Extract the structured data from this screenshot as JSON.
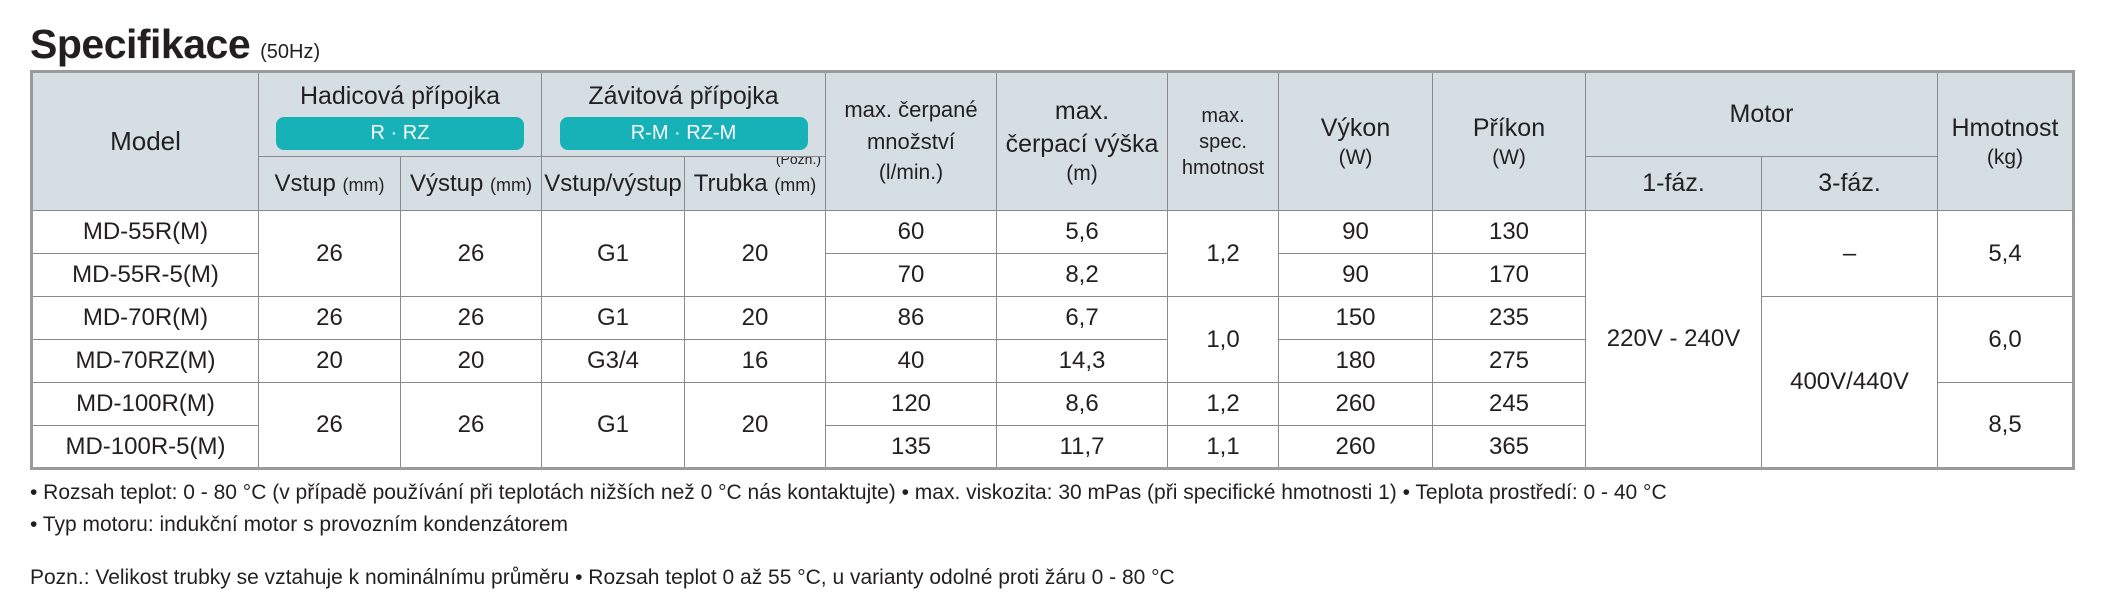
{
  "title": "Specifikace",
  "subtitle": "(50Hz)",
  "header": {
    "model": "Model",
    "hose_group": "Hadicová přípojka",
    "hose_pill": "R · RZ",
    "thread_group": "Závitová přípojka",
    "thread_pill": "R-M · RZ-M",
    "inlet_label": "Vstup",
    "inlet_unit": "(mm)",
    "outlet_label": "Výstup",
    "outlet_unit": "(mm)",
    "inout_label": "Vstup/výstup",
    "pipe_label": "Trubka",
    "pipe_unit": "(mm)",
    "pipe_note": "(Pozn.)",
    "flow_l1": "max. čerpané",
    "flow_l2": "množství",
    "flow_unit": "(l/min.)",
    "head_l1": "max.",
    "head_l2": "čerpací výška",
    "head_unit": "(m)",
    "sg_l1": "max.",
    "sg_l2": "spec.",
    "sg_l3": "hmotnost",
    "power_label": "Výkon",
    "power_unit": "(W)",
    "input_label": "Příkon",
    "input_unit": "(W)",
    "motor_label": "Motor",
    "phase1": "1-fáz.",
    "phase3": "3-fáz.",
    "weight_label": "Hmotnost",
    "weight_unit": "(kg)"
  },
  "rows": [
    {
      "model": "MD-55R(M)",
      "flow": "60",
      "head": "5,6",
      "power": "90",
      "input": "130"
    },
    {
      "model": "MD-55R-5(M)",
      "flow": "70",
      "head": "8,2",
      "power": "90",
      "input": "170"
    },
    {
      "model": "MD-70R(M)",
      "flow": "86",
      "head": "6,7",
      "power": "150",
      "input": "235"
    },
    {
      "model": "MD-70RZ(M)",
      "flow": "40",
      "head": "14,3",
      "power": "180",
      "input": "275"
    },
    {
      "model": "MD-100R(M)",
      "flow": "120",
      "head": "8,6",
      "power": "260",
      "input": "245"
    },
    {
      "model": "MD-100R-5(M)",
      "flow": "135",
      "head": "11,7",
      "power": "260",
      "input": "365"
    }
  ],
  "merged": {
    "inlet_a": "26",
    "outlet_a": "26",
    "inout_a": "G1",
    "pipe_a": "20",
    "inlet_b": "26",
    "outlet_b": "26",
    "inout_b": "G1",
    "pipe_b": "20",
    "inlet_c": "20",
    "outlet_c": "20",
    "inout_c": "G3/4",
    "pipe_c": "16",
    "inlet_d": "26",
    "outlet_d": "26",
    "inout_d": "G1",
    "pipe_d": "20",
    "sg_a": "1,2",
    "sg_b": "1,0",
    "sg_c": "1,2",
    "sg_d": "1,1",
    "phase1_all": "220V - 240V",
    "phase3_a": "–",
    "phase3_b": "400V/440V",
    "weight_a": "5,4",
    "weight_b": "6,0",
    "weight_c": "8,5"
  },
  "notes": {
    "line1": "• Rozsah teplot: 0 - 80 °C (v případě používání při teplotách nižších než 0 °C nás kontaktujte) • max. viskozita: 30 mPas (při specifické hmotnosti 1) • Teplota prostředí: 0 - 40 °C",
    "line2": "• Typ motoru: indukční motor s provozním kondenzátorem",
    "line3": "Pozn.: Velikost trubky se vztahuje k nominálnímu průměru • Rozsah teplot 0 až 55 °C, u varianty odolné proti žáru 0 - 80 °C"
  }
}
